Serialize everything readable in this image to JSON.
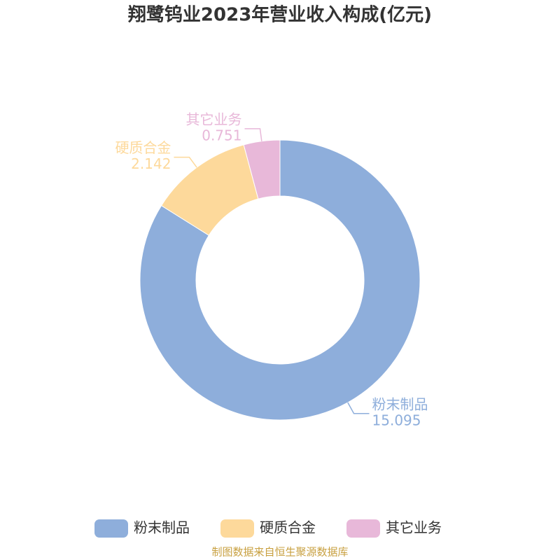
{
  "chart_data": {
    "type": "pie",
    "title": "翔鹭钨业2023年营业收入构成(亿元)",
    "categories": [
      "粉末制品",
      "硬质合金",
      "其它业务"
    ],
    "values": [
      15.095,
      2.142,
      0.751
    ],
    "colors": [
      "#8eaedb",
      "#fdd99b",
      "#e8b8d9"
    ],
    "donut": true,
    "legend": "bottom",
    "source": "制图数据来自恒生聚源数据库"
  }
}
